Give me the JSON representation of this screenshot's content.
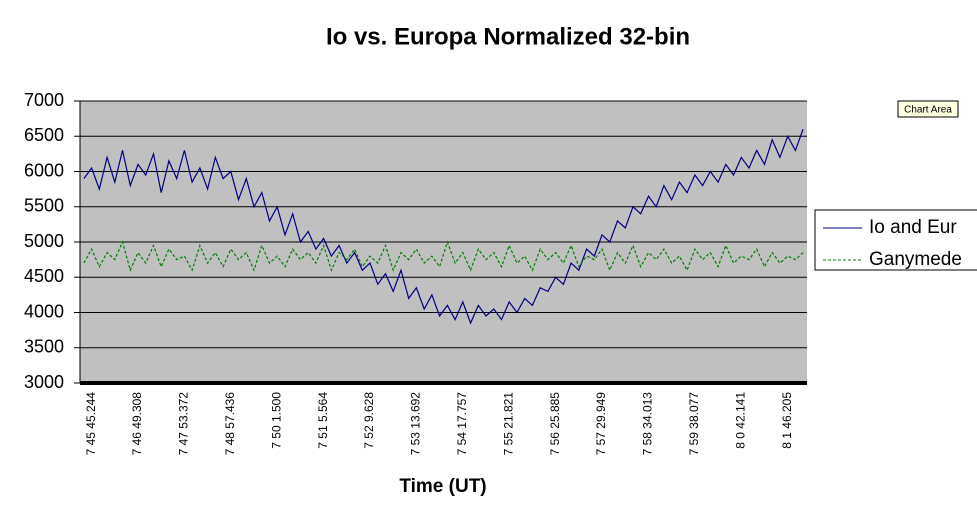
{
  "chart_data": {
    "type": "line",
    "title": "Io vs. Europa Normalized 32-bin",
    "x_label": "Time (UT)",
    "tooltip": "Chart Area",
    "categories": [
      null,
      "7 45 45.244",
      null,
      null,
      null,
      null,
      null,
      "7 46 49.308",
      null,
      null,
      null,
      null,
      null,
      "7 47 53.372",
      null,
      null,
      null,
      null,
      null,
      "7 48 57.436",
      null,
      null,
      null,
      null,
      null,
      "7 50  1.500",
      null,
      null,
      null,
      null,
      null,
      "7 51  5.564",
      null,
      null,
      null,
      null,
      null,
      "7 52  9.628",
      null,
      null,
      null,
      null,
      null,
      "7 53 13.692",
      null,
      null,
      null,
      null,
      null,
      "7 54 17.757",
      null,
      null,
      null,
      null,
      null,
      "7 55 21.821",
      null,
      null,
      null,
      null,
      null,
      "7 56 25.885",
      null,
      null,
      null,
      null,
      null,
      "7 57 29.949",
      null,
      null,
      null,
      null,
      null,
      "7 58 34.013",
      null,
      null,
      null,
      null,
      null,
      "7 59 38.077",
      null,
      null,
      null,
      null,
      null,
      "8  0 42.141",
      null,
      null,
      null,
      null,
      null,
      "8  1 46.205",
      null,
      null
    ],
    "series": [
      {
        "name": "Io and Eur",
        "color": "#000080",
        "dash": false,
        "values": [
          5900,
          6050,
          5750,
          6200,
          5850,
          6300,
          5800,
          6100,
          5950,
          6250,
          5700,
          6150,
          5900,
          6300,
          5850,
          6050,
          5750,
          6200,
          5900,
          6000,
          5600,
          5900,
          5500,
          5700,
          5300,
          5500,
          5100,
          5400,
          5000,
          5150,
          4900,
          5050,
          4800,
          4950,
          4700,
          4850,
          4600,
          4700,
          4400,
          4550,
          4300,
          4600,
          4200,
          4350,
          4050,
          4250,
          3950,
          4100,
          3900,
          4150,
          3850,
          4100,
          3950,
          4050,
          3900,
          4150,
          4000,
          4200,
          4100,
          4350,
          4300,
          4500,
          4400,
          4700,
          4600,
          4900,
          4800,
          5100,
          5000,
          5300,
          5200,
          5500,
          5400,
          5650,
          5500,
          5800,
          5600,
          5850,
          5700,
          5950,
          5800,
          6000,
          5850,
          6100,
          5950,
          6200,
          6050,
          6300,
          6100,
          6450,
          6200,
          6500,
          6300,
          6600
        ]
      },
      {
        "name": "Ganymede",
        "color": "#008000",
        "dash": true,
        "values": [
          4700,
          4900,
          4650,
          4850,
          4750,
          5000,
          4600,
          4850,
          4700,
          4950,
          4650,
          4900,
          4750,
          4800,
          4600,
          4950,
          4700,
          4850,
          4650,
          4900,
          4750,
          4850,
          4600,
          4950,
          4700,
          4800,
          4650,
          4900,
          4750,
          4850,
          4700,
          4950,
          4600,
          4850,
          4750,
          4900,
          4650,
          4800,
          4700,
          4950,
          4600,
          4850,
          4750,
          4900,
          4700,
          4800,
          4650,
          5000,
          4700,
          4850,
          4600,
          4900,
          4750,
          4850,
          4650,
          4950,
          4700,
          4800,
          4600,
          4900,
          4750,
          4850,
          4700,
          4950,
          4650,
          4800,
          4750,
          4900,
          4600,
          4850,
          4700,
          4950,
          4650,
          4850,
          4750,
          4900,
          4700,
          4800,
          4600,
          4900,
          4750,
          4850,
          4650,
          4950,
          4700,
          4800,
          4750,
          4900,
          4650,
          4850,
          4700,
          4800,
          4750,
          4850
        ]
      }
    ],
    "ylim": [
      3000,
      7000
    ],
    "yticks": [
      3000,
      3500,
      4000,
      4500,
      5000,
      5500,
      6000,
      6500,
      7000
    ],
    "grid": true
  }
}
